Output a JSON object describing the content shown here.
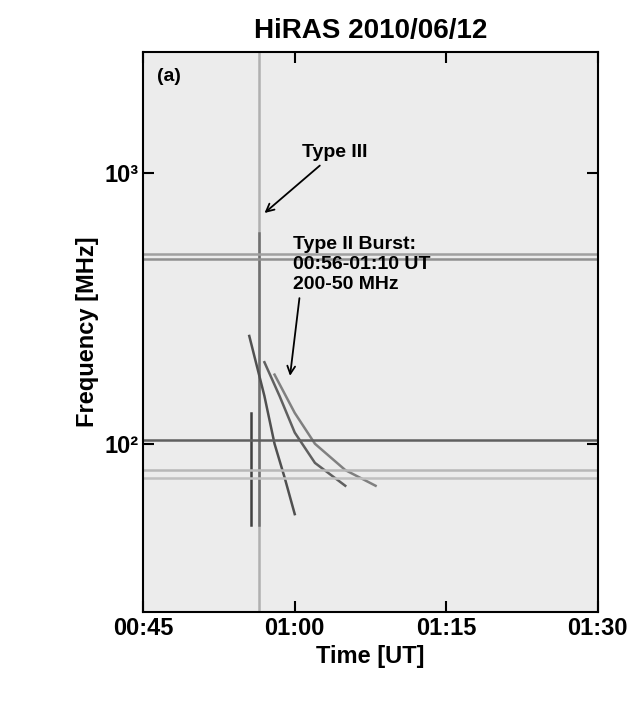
{
  "chart_data": {
    "type": "line",
    "title": "HiRAS 2010/06/12",
    "x_label": "Time [UT]",
    "y_label": "Frequency [MHz]",
    "log": "y",
    "xlim": [
      45,
      90
    ],
    "xticks": [
      {
        "value": 45,
        "label": "00:45"
      },
      {
        "value": 60,
        "label": "01:00"
      },
      {
        "value": 75,
        "label": "01:15"
      },
      {
        "value": 90,
        "label": "01:30"
      }
    ],
    "ylim": [
      24,
      2800
    ],
    "yticks": [
      {
        "value": 100,
        "label": "10²"
      },
      {
        "value": 1000,
        "label": "10³"
      }
    ],
    "annotations": [
      {
        "text": "(a)"
      },
      {
        "text": "Type III",
        "x": 56.8,
        "y": 700
      },
      {
        "text": "Type II Burst:\n00:56-01:10 UT\n200-50 MHz",
        "x": 59.5,
        "y": 174
      }
    ],
    "series": [
      {
        "x": [
          56.5,
          56.5
        ],
        "values": [
          24,
          2800
        ],
        "color": "#b0b0b0",
        "line_style": "solid"
      },
      {
        "x": [
          56.5,
          56.5
        ],
        "values": [
          50,
          600
        ],
        "color": "#707070",
        "line_style": "solid"
      },
      {
        "x": [
          55.7,
          55.7
        ],
        "values": [
          50,
          130
        ],
        "color": "#404040",
        "line_style": "solid"
      },
      {
        "x": [
          55.5,
          57,
          58,
          59,
          60
        ],
        "values": [
          250,
          150,
          100,
          75,
          55
        ],
        "color": "#505050",
        "line_style": "solid"
      },
      {
        "x": [
          57,
          58.5,
          60,
          62,
          65
        ],
        "values": [
          200,
          150,
          110,
          85,
          70
        ],
        "color": "#606060",
        "line_style": "solid"
      },
      {
        "x": [
          58,
          60,
          62,
          65,
          68
        ],
        "values": [
          180,
          130,
          100,
          80,
          70
        ],
        "color": "#808080",
        "line_style": "solid"
      },
      {
        "x": [
          45,
          90
        ],
        "values": [
          480,
          480
        ],
        "color": "#909090",
        "line_style": "solid"
      },
      {
        "x": [
          45,
          90
        ],
        "values": [
          500,
          500
        ],
        "color": "#a0a0a0",
        "line_style": "solid"
      },
      {
        "x": [
          45,
          90
        ],
        "values": [
          103,
          103
        ],
        "color": "#606060",
        "line_style": "solid"
      },
      {
        "x": [
          45,
          90
        ],
        "values": [
          80,
          80
        ],
        "color": "#b8b8b8",
        "line_style": "solid"
      },
      {
        "x": [
          45,
          90
        ],
        "values": [
          75,
          75
        ],
        "color": "#c0c0c0",
        "line_style": "solid"
      }
    ]
  }
}
